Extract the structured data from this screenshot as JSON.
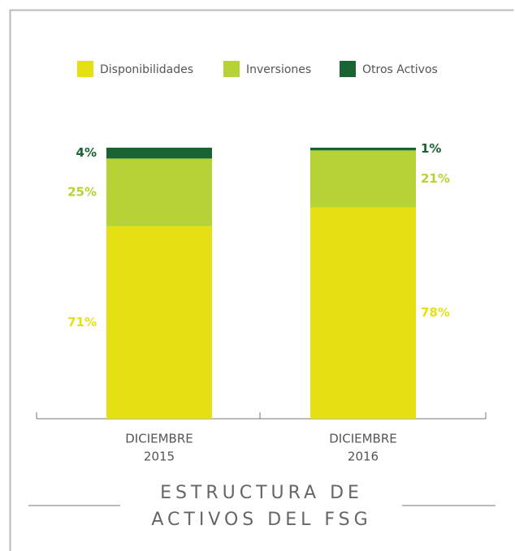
{
  "chart_data": {
    "type": "stacked-bar",
    "title": [
      "ESTRUCTURA DE",
      "ACTIVOS DEL FSG"
    ],
    "categories": [
      [
        "DICIEMBRE",
        "2015"
      ],
      [
        "DICIEMBRE",
        "2016"
      ]
    ],
    "series": [
      {
        "name": "Disponibilidades",
        "color": "#e4e014",
        "values": [
          71,
          78
        ],
        "value_labels": [
          "71%",
          "78%"
        ]
      },
      {
        "name": "Inversiones",
        "color": "#b5d334",
        "values": [
          25,
          21
        ],
        "value_labels": [
          "25%",
          "21%"
        ]
      },
      {
        "name": "Otros Activos",
        "color": "#1a6332",
        "values": [
          4,
          1
        ],
        "value_labels": [
          "4%",
          "1%"
        ]
      }
    ],
    "ylim": [
      0,
      100
    ],
    "legend": "top"
  }
}
